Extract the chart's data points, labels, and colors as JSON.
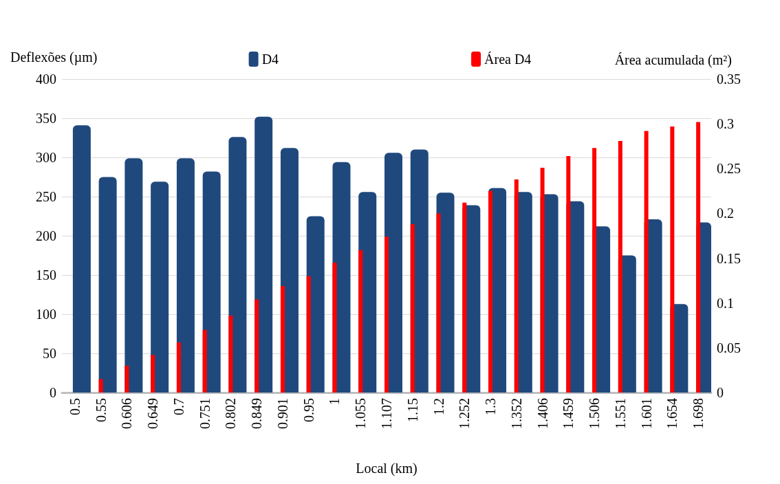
{
  "chart_data": {
    "type": "bar",
    "xlabel": "Local (km)",
    "ylabel": "Deflexões (µm)",
    "y2label": "Área acumulada (m²)",
    "categories": [
      "0.5",
      "0.55",
      "0.606",
      "0.649",
      "0.7",
      "0.751",
      "0.802",
      "0.849",
      "0.901",
      "0.95",
      "1",
      "1.055",
      "1.107",
      "1.15",
      "1.2",
      "1.252",
      "1.3",
      "1.352",
      "1.406",
      "1.459",
      "1.506",
      "1.551",
      "1.601",
      "1.654",
      "1.698"
    ],
    "series": [
      {
        "name": "D4",
        "color": "#1f497d",
        "values": [
          341,
          275,
          299,
          269,
          299,
          282,
          326,
          352,
          312,
          225,
          294,
          256,
          306,
          310,
          255,
          239,
          261,
          256,
          253,
          244,
          212,
          175,
          221,
          113,
          217
        ]
      },
      {
        "name": "Área D4",
        "color": "#ff0000",
        "axis": "y2",
        "values": [
          0,
          0.015,
          0.03,
          0.042,
          0.056,
          0.07,
          0.086,
          0.104,
          0.119,
          0.13,
          0.145,
          0.159,
          0.174,
          0.188,
          0.2,
          0.212,
          0.225,
          0.238,
          0.251,
          0.264,
          0.273,
          0.281,
          0.292,
          0.297,
          0.302
        ]
      }
    ],
    "ylim": [
      0,
      400
    ],
    "yticks": [
      0,
      50,
      100,
      150,
      200,
      250,
      300,
      350,
      400
    ],
    "y2lim": [
      0,
      0.35
    ],
    "y2ticks": [
      0,
      0.05,
      0.1,
      0.15,
      0.2,
      0.25,
      0.3,
      0.35
    ],
    "grid": "y",
    "legend": "top"
  }
}
